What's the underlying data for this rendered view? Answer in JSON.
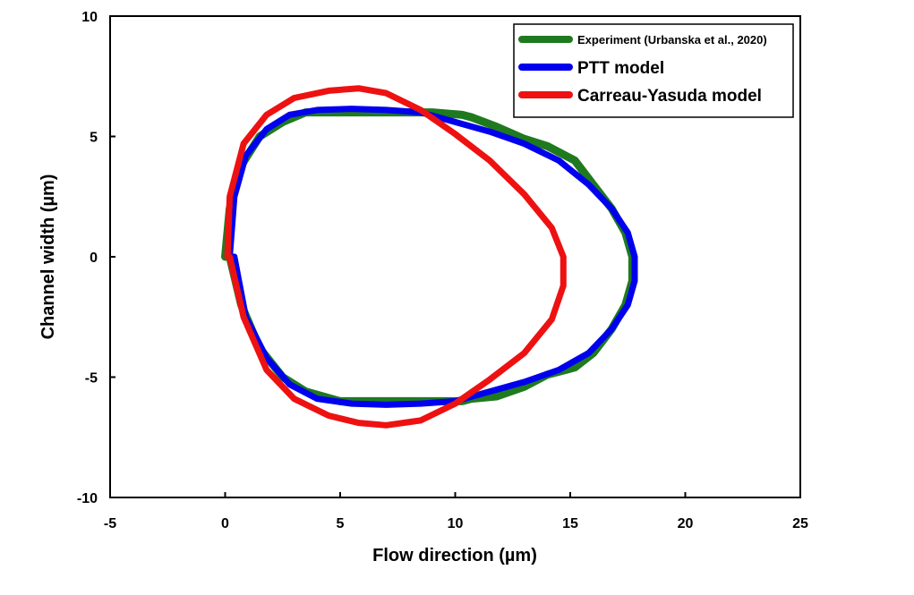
{
  "chart_data": {
    "type": "line",
    "title": "",
    "xlabel": "Flow direction (µm)",
    "ylabel": "Channel width (µm)",
    "xlim": [
      -5,
      25
    ],
    "ylim": [
      -10,
      10
    ],
    "xticks": [
      -5,
      0,
      5,
      10,
      15,
      20,
      25
    ],
    "yticks": [
      -10,
      -5,
      0,
      5,
      10
    ],
    "grid": false,
    "legend_position": "top-right",
    "series": [
      {
        "name": "Experiment (Urbanska et al., 2020)",
        "color": "#1f7a1f",
        "closed": true,
        "x": [
          0.0,
          0.2,
          0.7,
          1.5,
          2.5,
          3.5,
          5.0,
          7.0,
          9.0,
          10.3,
          10.7,
          11.8,
          13.0,
          14.0,
          15.2,
          16.0,
          16.8,
          17.4,
          17.7,
          17.7,
          17.4,
          16.8,
          16.0,
          15.2,
          14.0,
          13.0,
          11.8,
          10.7,
          10.3,
          9.0,
          7.0,
          5.0,
          3.5,
          2.5,
          1.5,
          0.7,
          0.2,
          0.0
        ],
        "y": [
          0.0,
          2.0,
          3.8,
          5.0,
          5.6,
          6.0,
          6.0,
          6.0,
          6.0,
          5.9,
          5.8,
          5.4,
          4.9,
          4.6,
          4.0,
          3.0,
          2.0,
          1.0,
          0.0,
          -1.0,
          -2.0,
          -3.0,
          -4.0,
          -4.6,
          -4.9,
          -5.4,
          -5.8,
          -5.9,
          -6.0,
          -6.0,
          -6.0,
          -6.0,
          -5.6,
          -5.0,
          -3.8,
          -2.0,
          0.0,
          0.0
        ]
      },
      {
        "name": "PTT model",
        "color": "#0000ee",
        "closed": true,
        "x": [
          0.2,
          0.4,
          0.9,
          1.8,
          2.8,
          4.0,
          5.5,
          7.0,
          8.5,
          10.0,
          11.5,
          13.0,
          14.5,
          15.8,
          16.8,
          17.5,
          17.8,
          17.8,
          17.5,
          16.8,
          15.8,
          14.5,
          13.0,
          11.5,
          10.0,
          8.5,
          7.0,
          5.5,
          4.0,
          2.8,
          1.8,
          0.9,
          0.4,
          0.2
        ],
        "y": [
          0.0,
          2.5,
          4.2,
          5.3,
          5.9,
          6.1,
          6.15,
          6.1,
          6.0,
          5.6,
          5.2,
          4.7,
          4.0,
          3.0,
          2.0,
          1.0,
          0.0,
          -1.0,
          -2.0,
          -3.0,
          -4.0,
          -4.7,
          -5.2,
          -5.6,
          -6.0,
          -6.1,
          -6.15,
          -6.1,
          -5.9,
          -5.3,
          -4.2,
          -2.5,
          0.0,
          0.0
        ]
      },
      {
        "name": "Carreau-Yasuda model",
        "color": "#ee1111",
        "closed": true,
        "x": [
          0.1,
          0.2,
          0.8,
          1.8,
          3.0,
          4.5,
          5.8,
          7.0,
          8.5,
          10.0,
          11.5,
          13.0,
          14.2,
          14.7,
          14.7,
          14.7,
          14.2,
          13.0,
          11.5,
          10.0,
          8.5,
          7.0,
          5.8,
          4.5,
          3.0,
          1.8,
          0.8,
          0.2,
          0.1
        ],
        "y": [
          0.0,
          2.5,
          4.7,
          5.9,
          6.6,
          6.9,
          7.0,
          6.8,
          6.1,
          5.1,
          4.0,
          2.6,
          1.2,
          0.0,
          0.0,
          -1.2,
          -2.6,
          -4.0,
          -5.1,
          -6.1,
          -6.8,
          -7.0,
          -6.9,
          -6.6,
          -5.9,
          -4.7,
          -2.5,
          0.0,
          0.0
        ]
      }
    ]
  }
}
